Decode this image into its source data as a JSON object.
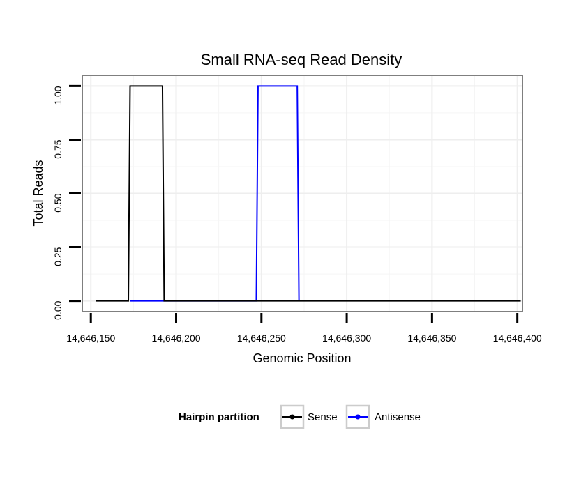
{
  "chart_data": {
    "type": "line",
    "title": "Small RNA-seq Read Density",
    "xlabel": "Genomic Position",
    "ylabel": "Total Reads",
    "xlim": [
      14646145,
      14646403
    ],
    "ylim": [
      -0.05,
      1.05
    ],
    "x_ticks": [
      14646150,
      14646200,
      14646250,
      14646300,
      14646350,
      14646400
    ],
    "x_tick_labels": [
      "14,646,150",
      "14,646,200",
      "14,646,250",
      "14,646,300",
      "14,646,350",
      "14,646,400"
    ],
    "y_ticks": [
      0,
      0.25,
      0.5,
      0.75,
      1.0
    ],
    "y_tick_labels": [
      "0.00",
      "0.25",
      "0.50",
      "0.75",
      "1.00"
    ],
    "grid": true,
    "legend": {
      "title": "Hairpin partition",
      "position": "bottom",
      "entries": [
        {
          "name": "Sense",
          "color": "#000000"
        },
        {
          "name": "Antisense",
          "color": "#0000ff"
        }
      ]
    },
    "series": [
      {
        "name": "Sense",
        "color": "#000000",
        "x": [
          14646153,
          14646172,
          14646173,
          14646192,
          14646193,
          14646402
        ],
        "y": [
          0,
          0,
          1,
          1,
          0,
          0
        ]
      },
      {
        "name": "Antisense",
        "color": "#0000ff",
        "x": [
          14646173,
          14646192,
          14646193,
          14646247,
          14646248,
          14646271,
          14646272
        ],
        "y": [
          0,
          0,
          0,
          0,
          1,
          1,
          0
        ]
      }
    ]
  }
}
